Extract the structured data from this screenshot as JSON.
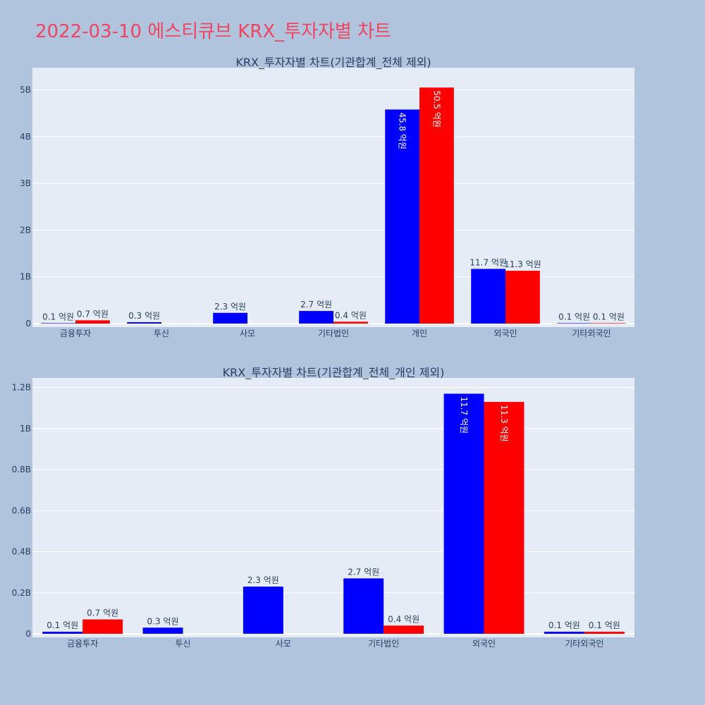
{
  "page": {
    "title": "2022-03-10 에스티큐브 KRX_투자자별 차트"
  },
  "colors": {
    "background": "#b0c4de",
    "plot_bg": "#e5ecf6",
    "buy": "#0000ff",
    "sell": "#ff0000",
    "title": "#ef4560",
    "text": "#2a3f5f"
  },
  "chart_data": [
    {
      "type": "bar",
      "title": "KRX_투자자별 차트(기관합계_전체 제외)",
      "categories": [
        "금융투자",
        "투신",
        "사모",
        "기타법인",
        "개인",
        "외국인",
        "기타외국인"
      ],
      "series": [
        {
          "color": "#0000ff",
          "values": [
            10000000,
            30000000,
            230000000,
            270000000,
            4580000000,
            1170000000,
            10000000
          ],
          "labels": [
            "0.1 억원",
            "0.3 억원",
            "2.3 억원",
            "2.7 억원",
            "45.8 억원",
            "11.7 억원",
            "0.1 억원"
          ]
        },
        {
          "color": "#ff0000",
          "values": [
            70000000,
            0,
            0,
            40000000,
            5050000000,
            1130000000,
            10000000
          ],
          "labels": [
            "0.7 억원",
            "",
            "",
            "0.4 억원",
            "50.5 억원",
            "11.3 억원",
            "0.1 억원"
          ]
        }
      ],
      "ylim": [
        0,
        5400000000
      ],
      "yticks": [
        0,
        1000000000,
        2000000000,
        3000000000,
        4000000000,
        5000000000
      ],
      "ytick_labels": [
        "0",
        "1B",
        "2B",
        "3B",
        "4B",
        "5B"
      ],
      "grid": true
    },
    {
      "type": "bar",
      "title": "KRX_투자자별 차트(기관합계_전체_개인 제외)",
      "categories": [
        "금융투자",
        "투신",
        "사모",
        "기타법인",
        "외국인",
        "기타외국인"
      ],
      "series": [
        {
          "color": "#0000ff",
          "values": [
            10000000,
            30000000,
            230000000,
            270000000,
            1170000000,
            10000000
          ],
          "labels": [
            "0.1 억원",
            "0.3 억원",
            "2.3 억원",
            "2.7 억원",
            "11.7 억원",
            "0.1 억원"
          ]
        },
        {
          "color": "#ff0000",
          "values": [
            70000000,
            0,
            0,
            40000000,
            1130000000,
            10000000
          ],
          "labels": [
            "0.7 억원",
            "",
            "",
            "0.4 억원",
            "11.3 억원",
            "0.1 억원"
          ]
        }
      ],
      "ylim": [
        0,
        1230000000
      ],
      "yticks": [
        0,
        200000000,
        400000000,
        600000000,
        800000000,
        1000000000,
        1200000000
      ],
      "ytick_labels": [
        "0",
        "0.2B",
        "0.4B",
        "0.6B",
        "0.8B",
        "1B",
        "1.2B"
      ],
      "grid": true
    }
  ]
}
